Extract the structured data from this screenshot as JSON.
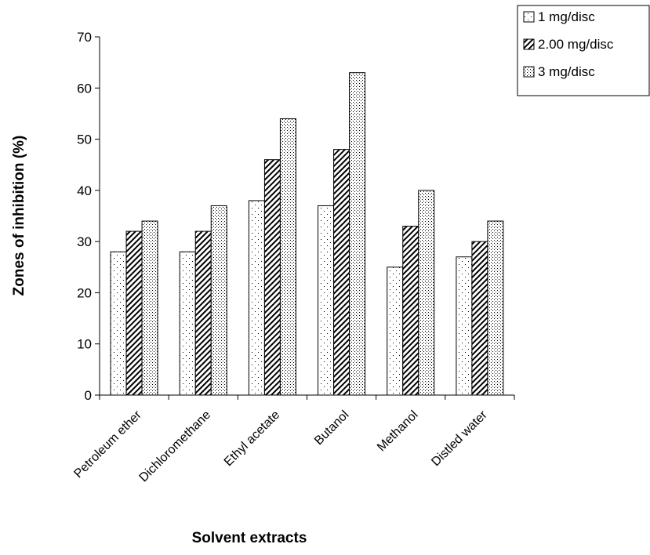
{
  "chart_data": {
    "type": "bar",
    "title": "",
    "xlabel": "Solvent extracts",
    "ylabel": "Zones of inhibition (%)",
    "ylim": [
      0,
      70
    ],
    "yticks": [
      0,
      10,
      20,
      30,
      40,
      50,
      60,
      70
    ],
    "categories": [
      "Petroleum ether",
      "Dichloromethane",
      "Ethyl acetate",
      "Butanol",
      "Methanol",
      "Distled water"
    ],
    "series": [
      {
        "name": "1 mg/disc",
        "values": [
          28,
          28,
          38,
          37,
          25,
          27
        ],
        "pattern": "dots-sparse"
      },
      {
        "name": "2.00 mg/disc",
        "values": [
          32,
          32,
          46,
          48,
          33,
          30
        ],
        "pattern": "diagonal"
      },
      {
        "name": "3 mg/disc",
        "values": [
          34,
          37,
          54,
          63,
          40,
          34
        ],
        "pattern": "dots-dense"
      }
    ],
    "legend_position": "top-right",
    "grid": false
  }
}
